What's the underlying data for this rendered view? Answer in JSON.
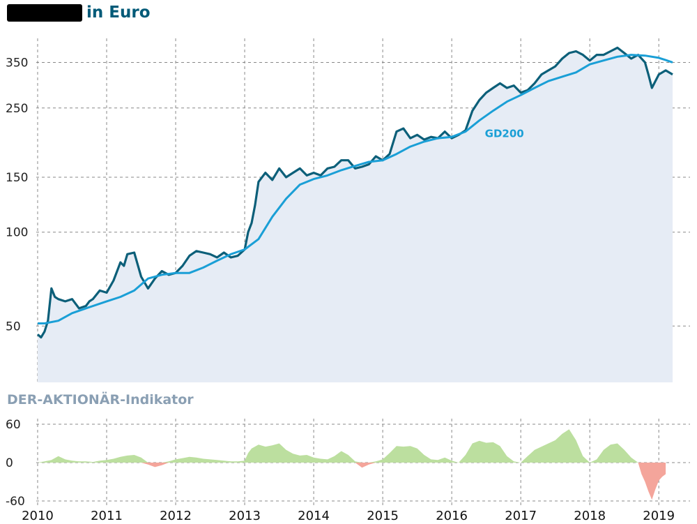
{
  "header": {
    "title": "in Euro"
  },
  "indicator": {
    "title": "DER-AKTIONÄR-Indikator"
  },
  "colors": {
    "title": "#005a78",
    "indicator_title": "#8a9fb3",
    "price_line": "#0c5f79",
    "gd200_line": "#1a9fd6",
    "price_area": "#e6ecf5",
    "grid": "#888888",
    "positive": "#bcdf9f",
    "negative": "#f4a59b"
  },
  "chart_data": [
    {
      "type": "line",
      "y_scale": "log",
      "ylim": [
        33,
        440
      ],
      "xlim": [
        2009.98,
        2019.2
      ],
      "yticks": [
        50,
        100,
        150,
        250,
        350
      ],
      "xticks": [
        "2010",
        "2011",
        "2012",
        "2013",
        "2014",
        "2015",
        "2016",
        "2017",
        "2018",
        "2019"
      ],
      "grid": true,
      "series": [
        {
          "name": "",
          "x": [
            2010.0,
            2010.05,
            2010.1,
            2010.15,
            2010.2,
            2010.25,
            2010.3,
            2010.4,
            2010.5,
            2010.6,
            2010.7,
            2010.75,
            2010.8,
            2010.9,
            2011.0,
            2011.1,
            2011.2,
            2011.25,
            2011.3,
            2011.4,
            2011.5,
            2011.6,
            2011.7,
            2011.8,
            2011.9,
            2012.0,
            2012.1,
            2012.2,
            2012.3,
            2012.4,
            2012.5,
            2012.6,
            2012.7,
            2012.8,
            2012.9,
            2013.0,
            2013.05,
            2013.1,
            2013.15,
            2013.2,
            2013.3,
            2013.4,
            2013.5,
            2013.6,
            2013.7,
            2013.8,
            2013.9,
            2014.0,
            2014.1,
            2014.2,
            2014.3,
            2014.4,
            2014.5,
            2014.6,
            2014.7,
            2014.8,
            2014.9,
            2015.0,
            2015.1,
            2015.2,
            2015.3,
            2015.4,
            2015.5,
            2015.6,
            2015.7,
            2015.8,
            2015.9,
            2016.0,
            2016.1,
            2016.2,
            2016.3,
            2016.4,
            2016.5,
            2016.6,
            2016.7,
            2016.8,
            2016.9,
            2017.0,
            2017.1,
            2017.2,
            2017.3,
            2017.4,
            2017.5,
            2017.6,
            2017.7,
            2017.8,
            2017.9,
            2018.0,
            2018.1,
            2018.2,
            2018.3,
            2018.4,
            2018.5,
            2018.6,
            2018.7,
            2018.8,
            2018.85,
            2018.9,
            2019.0,
            2019.1,
            2019.2
          ],
          "values": [
            47,
            46,
            48,
            52,
            66,
            62,
            61,
            60,
            61,
            57,
            58,
            60,
            61,
            65,
            64,
            70,
            80,
            78,
            85,
            86,
            72,
            66,
            71,
            75,
            73,
            74,
            78,
            84,
            87,
            86,
            85,
            83,
            86,
            83,
            84,
            88,
            100,
            107,
            122,
            145,
            155,
            147,
            160,
            150,
            155,
            160,
            152,
            155,
            152,
            160,
            162,
            170,
            170,
            160,
            162,
            165,
            175,
            170,
            178,
            210,
            215,
            200,
            205,
            198,
            202,
            200,
            210,
            200,
            205,
            212,
            245,
            265,
            280,
            290,
            300,
            290,
            295,
            280,
            285,
            300,
            320,
            330,
            340,
            360,
            375,
            380,
            370,
            355,
            370,
            370,
            380,
            390,
            375,
            360,
            370,
            350,
            320,
            290,
            320,
            330,
            320
          ]
        },
        {
          "name": "GD200",
          "x": [
            2010.0,
            2010.1,
            2010.3,
            2010.5,
            2010.7,
            2011.0,
            2011.2,
            2011.4,
            2011.6,
            2011.8,
            2012.0,
            2012.2,
            2012.4,
            2012.6,
            2012.8,
            2013.0,
            2013.2,
            2013.4,
            2013.6,
            2013.8,
            2014.0,
            2014.2,
            2014.4,
            2014.6,
            2014.8,
            2015.0,
            2015.2,
            2015.4,
            2015.6,
            2015.8,
            2016.0,
            2016.2,
            2016.4,
            2016.6,
            2016.8,
            2017.0,
            2017.2,
            2017.4,
            2017.6,
            2017.8,
            2018.0,
            2018.2,
            2018.4,
            2018.6,
            2018.8,
            2019.0,
            2019.1,
            2019.2
          ],
          "values": [
            51,
            51,
            52,
            55,
            57,
            60,
            62,
            65,
            71,
            73,
            74,
            74,
            77,
            81,
            85,
            88,
            95,
            112,
            128,
            142,
            148,
            152,
            158,
            163,
            168,
            170,
            178,
            188,
            195,
            200,
            202,
            210,
            228,
            245,
            262,
            275,
            290,
            305,
            315,
            325,
            345,
            355,
            365,
            370,
            368,
            362,
            356,
            350
          ]
        }
      ],
      "annotations": [
        "GD200"
      ]
    },
    {
      "type": "area",
      "title": "DER-AKTIONÄR-Indikator",
      "ylim": [
        -60,
        60
      ],
      "yticks": [
        "60",
        "0",
        "-60"
      ],
      "xlim": [
        2009.98,
        2019.2
      ],
      "grid": true,
      "series": [
        {
          "name": "",
          "x": [
            2010.0,
            2010.1,
            2010.2,
            2010.3,
            2010.4,
            2010.5,
            2010.6,
            2010.7,
            2010.8,
            2010.9,
            2011.0,
            2011.1,
            2011.2,
            2011.3,
            2011.4,
            2011.5,
            2011.6,
            2011.7,
            2011.8,
            2011.9,
            2012.0,
            2012.1,
            2012.2,
            2012.3,
            2012.4,
            2012.5,
            2012.6,
            2012.7,
            2012.8,
            2012.9,
            2013.0,
            2013.05,
            2013.1,
            2013.2,
            2013.3,
            2013.4,
            2013.5,
            2013.6,
            2013.7,
            2013.8,
            2013.9,
            2014.0,
            2014.1,
            2014.2,
            2014.3,
            2014.4,
            2014.5,
            2014.6,
            2014.7,
            2014.8,
            2014.9,
            2015.0,
            2015.1,
            2015.2,
            2015.3,
            2015.4,
            2015.5,
            2015.6,
            2015.7,
            2015.8,
            2015.9,
            2016.0,
            2016.1,
            2016.2,
            2016.3,
            2016.4,
            2016.5,
            2016.6,
            2016.7,
            2016.8,
            2016.9,
            2017.0,
            2017.1,
            2017.2,
            2017.3,
            2017.4,
            2017.5,
            2017.6,
            2017.7,
            2017.8,
            2017.9,
            2018.0,
            2018.1,
            2018.2,
            2018.3,
            2018.4,
            2018.5,
            2018.6,
            2018.7,
            2018.75,
            2018.8,
            2018.85,
            2018.9,
            2018.95,
            2019.0,
            2019.05,
            2019.1
          ],
          "values": [
            0,
            2,
            4,
            10,
            5,
            3,
            2,
            2,
            1,
            3,
            4,
            6,
            9,
            11,
            12,
            8,
            -3,
            -7,
            -4,
            2,
            5,
            7,
            9,
            8,
            6,
            5,
            4,
            3,
            2,
            2,
            3,
            15,
            22,
            28,
            25,
            27,
            30,
            20,
            14,
            11,
            12,
            8,
            6,
            5,
            10,
            18,
            12,
            2,
            -8,
            -3,
            2,
            5,
            15,
            26,
            25,
            26,
            22,
            12,
            5,
            4,
            8,
            3,
            0,
            12,
            30,
            34,
            31,
            32,
            26,
            10,
            2,
            0,
            10,
            20,
            25,
            30,
            35,
            45,
            52,
            35,
            10,
            0,
            5,
            20,
            28,
            30,
            20,
            8,
            0,
            -18,
            -30,
            -45,
            -58,
            -42,
            -28,
            -22,
            -18
          ]
        }
      ]
    }
  ]
}
